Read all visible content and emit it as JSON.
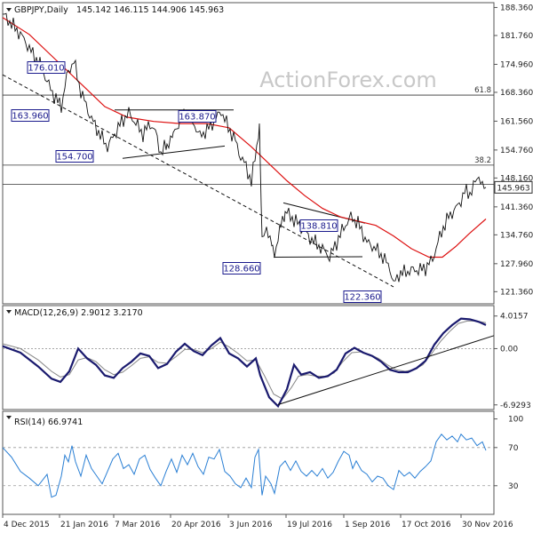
{
  "chart_data": [
    {
      "type": "candlestick",
      "title": "GBPJPY, Daily",
      "ohlc_readout": [
        "145.142",
        "146.115",
        "144.906",
        "145.963"
      ],
      "last_price": 145.963,
      "last_price_label": "145.963",
      "ylim": [
        118.5,
        189.5
      ],
      "y_ticks": [
        121.36,
        127.96,
        134.76,
        141.36,
        148.16,
        154.76,
        161.56,
        168.36,
        174.96,
        181.76,
        188.36
      ],
      "y_tick_labels": [
        "121.360",
        "127.960",
        "134.760",
        "141.360",
        "148.160",
        "154.760",
        "161.560",
        "168.360",
        "174.960",
        "181.760",
        "188.360"
      ],
      "x_tick_labels": [
        "4 Dec 2015",
        "21 Jan 2016",
        "7 Mar 2016",
        "20 Apr 2016",
        "3 Jun 2016",
        "19 Jul 2016",
        "1 Sep 2016",
        "17 Oct 2016",
        "30 Nov 2016"
      ],
      "price_path": [
        [
          0,
          186.8
        ],
        [
          10,
          184.5
        ],
        [
          22,
          181.5
        ],
        [
          32,
          178.0
        ],
        [
          42,
          175.0
        ],
        [
          52,
          170.0
        ],
        [
          58,
          167.5
        ],
        [
          66,
          165.0
        ],
        [
          72,
          172.0
        ],
        [
          80,
          176.0
        ],
        [
          86,
          170.0
        ],
        [
          96,
          164.0
        ],
        [
          104,
          160.5
        ],
        [
          112,
          157.5
        ],
        [
          118,
          155.5
        ],
        [
          126,
          158.5
        ],
        [
          134,
          161.5
        ],
        [
          142,
          163.5
        ],
        [
          150,
          161.0
        ],
        [
          158,
          158.5
        ],
        [
          166,
          161.0
        ],
        [
          172,
          159.0
        ],
        [
          178,
          154.0
        ],
        [
          185,
          156.0
        ],
        [
          192,
          158.5
        ],
        [
          198,
          161.0
        ],
        [
          206,
          163.8
        ],
        [
          214,
          161.5
        ],
        [
          222,
          158.0
        ],
        [
          230,
          159.5
        ],
        [
          238,
          161.5
        ],
        [
          246,
          164.0
        ],
        [
          254,
          160.0
        ],
        [
          262,
          157.0
        ],
        [
          268,
          153.0
        ],
        [
          274,
          151.0
        ],
        [
          280,
          147.0
        ],
        [
          284,
          153.0
        ],
        [
          289,
          160.0
        ],
        [
          292,
          133.5
        ],
        [
          297,
          136.5
        ],
        [
          304,
          131.0
        ],
        [
          308,
          131.5
        ],
        [
          313,
          137.0
        ],
        [
          318,
          140.5
        ],
        [
          324,
          139.0
        ],
        [
          330,
          138.0
        ],
        [
          338,
          136.0
        ],
        [
          346,
          134.0
        ],
        [
          354,
          132.5
        ],
        [
          362,
          131.0
        ],
        [
          368,
          129.5
        ],
        [
          376,
          133.0
        ],
        [
          384,
          136.5
        ],
        [
          392,
          139.0
        ],
        [
          400,
          137.5
        ],
        [
          410,
          133.0
        ],
        [
          420,
          131.5
        ],
        [
          428,
          129.5
        ],
        [
          436,
          127.0
        ],
        [
          440,
          123.0
        ],
        [
          446,
          125.5
        ],
        [
          454,
          126.0
        ],
        [
          462,
          126.5
        ],
        [
          470,
          126.5
        ],
        [
          476,
          127.0
        ],
        [
          484,
          129.0
        ],
        [
          490,
          133.0
        ],
        [
          496,
          136.5
        ],
        [
          502,
          139.0
        ],
        [
          508,
          140.5
        ],
        [
          514,
          142.0
        ],
        [
          520,
          145.0
        ],
        [
          526,
          144.5
        ],
        [
          532,
          147.0
        ],
        [
          536,
          149.0
        ],
        [
          540,
          146.0
        ],
        [
          544,
          145.963
        ]
      ],
      "ma_path": [
        [
          0,
          186.0
        ],
        [
          30,
          182.0
        ],
        [
          60,
          176.0
        ],
        [
          90,
          170.0
        ],
        [
          115,
          165.0
        ],
        [
          140,
          162.5
        ],
        [
          170,
          161.5
        ],
        [
          200,
          161.0
        ],
        [
          230,
          161.0
        ],
        [
          255,
          160.0
        ],
        [
          280,
          155.5
        ],
        [
          300,
          151.5
        ],
        [
          320,
          147.5
        ],
        [
          340,
          144.0
        ],
        [
          360,
          141.0
        ],
        [
          380,
          139.0
        ],
        [
          400,
          138.0
        ],
        [
          420,
          137.0
        ],
        [
          440,
          134.5
        ],
        [
          460,
          131.5
        ],
        [
          480,
          129.5
        ],
        [
          495,
          129.5
        ],
        [
          510,
          132.0
        ],
        [
          525,
          135.0
        ],
        [
          544,
          138.5
        ]
      ],
      "horizontal_levels": [
        {
          "label": "61.8",
          "value": 167.7
        },
        {
          "label": "38.2",
          "value": 151.2
        },
        {
          "label": "",
          "value": 146.7
        }
      ],
      "annotations": [
        {
          "label": "176.010",
          "value": 176.01
        },
        {
          "label": "163.960",
          "value": 163.96
        },
        {
          "label": "163.870",
          "value": 163.87
        },
        {
          "label": "154.700",
          "value": 154.7
        },
        {
          "label": "138.810",
          "value": 138.81
        },
        {
          "label": "128.660",
          "value": 128.66
        },
        {
          "label": "122.360",
          "value": 122.36
        }
      ],
      "trendlines": [
        {
          "from": [
            0,
            172.5
          ],
          "to": [
            440,
            122.5
          ],
          "style": "dashed"
        },
        {
          "from": [
            126,
            164.2
          ],
          "to": [
            260,
            164.2
          ],
          "style": "solid"
        },
        {
          "from": [
            135,
            152.8
          ],
          "to": [
            250,
            155.7
          ],
          "style": "solid"
        },
        {
          "from": [
            316,
            142.3
          ],
          "to": [
            408,
            137.5
          ],
          "style": "solid"
        },
        {
          "from": [
            305,
            129.5
          ],
          "to": [
            405,
            129.6
          ],
          "style": "solid"
        }
      ],
      "watermark": "ActionForex.com"
    },
    {
      "type": "line",
      "title": "MACD(12,26,9) 2.9012 3.2170",
      "ylim": [
        -7.5,
        5.3
      ],
      "y_ticks": [
        4.0157,
        0.0,
        -6.9293
      ],
      "y_tick_labels": [
        "4.0157",
        "0.00",
        "-6.9293"
      ],
      "macd_path": [
        [
          0,
          0.3
        ],
        [
          20,
          -0.5
        ],
        [
          40,
          -2.2
        ],
        [
          55,
          -3.7
        ],
        [
          65,
          -4.1
        ],
        [
          75,
          -2.8
        ],
        [
          85,
          0.0
        ],
        [
          95,
          -1.2
        ],
        [
          105,
          -2.0
        ],
        [
          115,
          -3.3
        ],
        [
          125,
          -3.6
        ],
        [
          135,
          -2.4
        ],
        [
          145,
          -1.6
        ],
        [
          155,
          -0.6
        ],
        [
          165,
          -0.9
        ],
        [
          175,
          -2.4
        ],
        [
          185,
          -1.9
        ],
        [
          195,
          -0.4
        ],
        [
          205,
          0.6
        ],
        [
          215,
          -0.3
        ],
        [
          225,
          -0.8
        ],
        [
          235,
          0.4
        ],
        [
          245,
          1.3
        ],
        [
          255,
          -0.6
        ],
        [
          265,
          -1.2
        ],
        [
          275,
          -2.2
        ],
        [
          285,
          -1.2
        ],
        [
          290,
          -3.3
        ],
        [
          300,
          -6.0
        ],
        [
          310,
          -7.1
        ],
        [
          320,
          -5.0
        ],
        [
          328,
          -2.0
        ],
        [
          336,
          -3.2
        ],
        [
          346,
          -2.9
        ],
        [
          356,
          -3.6
        ],
        [
          366,
          -3.4
        ],
        [
          376,
          -2.6
        ],
        [
          386,
          -0.6
        ],
        [
          396,
          0.1
        ],
        [
          406,
          -0.5
        ],
        [
          416,
          -0.9
        ],
        [
          426,
          -1.6
        ],
        [
          436,
          -2.6
        ],
        [
          446,
          -2.9
        ],
        [
          456,
          -2.9
        ],
        [
          466,
          -2.4
        ],
        [
          476,
          -1.5
        ],
        [
          486,
          0.5
        ],
        [
          496,
          1.9
        ],
        [
          506,
          2.9
        ],
        [
          516,
          3.7
        ],
        [
          526,
          3.6
        ],
        [
          536,
          3.3
        ],
        [
          544,
          2.9
        ]
      ],
      "signal_path": [
        [
          0,
          0.6
        ],
        [
          20,
          0.0
        ],
        [
          40,
          -1.4
        ],
        [
          55,
          -2.8
        ],
        [
          65,
          -3.5
        ],
        [
          75,
          -3.2
        ],
        [
          85,
          -1.4
        ],
        [
          95,
          -1.1
        ],
        [
          105,
          -1.6
        ],
        [
          115,
          -2.6
        ],
        [
          125,
          -3.2
        ],
        [
          135,
          -2.9
        ],
        [
          145,
          -2.1
        ],
        [
          155,
          -1.2
        ],
        [
          165,
          -1.0
        ],
        [
          175,
          -1.7
        ],
        [
          185,
          -1.8
        ],
        [
          195,
          -1.0
        ],
        [
          205,
          -0.1
        ],
        [
          215,
          -0.1
        ],
        [
          225,
          -0.5
        ],
        [
          235,
          0.0
        ],
        [
          245,
          0.8
        ],
        [
          255,
          0.2
        ],
        [
          265,
          -0.6
        ],
        [
          275,
          -1.5
        ],
        [
          285,
          -1.4
        ],
        [
          295,
          -3.4
        ],
        [
          305,
          -5.6
        ],
        [
          315,
          -6.2
        ],
        [
          325,
          -4.8
        ],
        [
          333,
          -3.4
        ],
        [
          343,
          -3.2
        ],
        [
          353,
          -3.4
        ],
        [
          363,
          -3.4
        ],
        [
          373,
          -3.0
        ],
        [
          383,
          -1.6
        ],
        [
          393,
          -0.5
        ],
        [
          403,
          -0.4
        ],
        [
          413,
          -0.7
        ],
        [
          423,
          -1.2
        ],
        [
          433,
          -2.0
        ],
        [
          443,
          -2.6
        ],
        [
          453,
          -2.8
        ],
        [
          463,
          -2.6
        ],
        [
          473,
          -2.0
        ],
        [
          483,
          -0.6
        ],
        [
          493,
          0.9
        ],
        [
          503,
          2.1
        ],
        [
          513,
          3.1
        ],
        [
          523,
          3.4
        ],
        [
          533,
          3.4
        ],
        [
          544,
          3.2
        ]
      ],
      "trendline": {
        "from": [
          310,
          -6.9
        ],
        "to": [
          556,
          1.6
        ]
      }
    },
    {
      "type": "line",
      "title": "RSI(14) 66.9741",
      "ylim": [
        0,
        108
      ],
      "y_ticks": [
        100,
        70,
        30
      ],
      "y_tick_labels": [
        "100",
        "70",
        "30"
      ],
      "dashed_levels": [
        70,
        30
      ],
      "rsi_path": [
        [
          0,
          70
        ],
        [
          10,
          60
        ],
        [
          20,
          45
        ],
        [
          30,
          38
        ],
        [
          40,
          30
        ],
        [
          50,
          42
        ],
        [
          55,
          18
        ],
        [
          60,
          20
        ],
        [
          66,
          40
        ],
        [
          70,
          62
        ],
        [
          74,
          55
        ],
        [
          78,
          72
        ],
        [
          82,
          55
        ],
        [
          88,
          40
        ],
        [
          94,
          62
        ],
        [
          100,
          48
        ],
        [
          106,
          40
        ],
        [
          112,
          32
        ],
        [
          118,
          45
        ],
        [
          124,
          58
        ],
        [
          130,
          64
        ],
        [
          136,
          48
        ],
        [
          142,
          52
        ],
        [
          148,
          42
        ],
        [
          154,
          58
        ],
        [
          160,
          62
        ],
        [
          166,
          47
        ],
        [
          172,
          38
        ],
        [
          178,
          30
        ],
        [
          184,
          45
        ],
        [
          190,
          58
        ],
        [
          196,
          44
        ],
        [
          202,
          62
        ],
        [
          208,
          52
        ],
        [
          214,
          64
        ],
        [
          220,
          50
        ],
        [
          226,
          42
        ],
        [
          232,
          60
        ],
        [
          238,
          58
        ],
        [
          244,
          68
        ],
        [
          250,
          45
        ],
        [
          256,
          40
        ],
        [
          262,
          32
        ],
        [
          268,
          28
        ],
        [
          274,
          38
        ],
        [
          280,
          28
        ],
        [
          284,
          60
        ],
        [
          288,
          68
        ],
        [
          292,
          20
        ],
        [
          296,
          40
        ],
        [
          302,
          32
        ],
        [
          306,
          22
        ],
        [
          312,
          50
        ],
        [
          318,
          56
        ],
        [
          324,
          46
        ],
        [
          330,
          56
        ],
        [
          336,
          45
        ],
        [
          342,
          40
        ],
        [
          348,
          46
        ],
        [
          354,
          40
        ],
        [
          360,
          48
        ],
        [
          366,
          38
        ],
        [
          372,
          44
        ],
        [
          378,
          56
        ],
        [
          384,
          66
        ],
        [
          390,
          62
        ],
        [
          394,
          48
        ],
        [
          398,
          56
        ],
        [
          404,
          46
        ],
        [
          410,
          42
        ],
        [
          416,
          34
        ],
        [
          422,
          40
        ],
        [
          428,
          38
        ],
        [
          434,
          30
        ],
        [
          440,
          26
        ],
        [
          446,
          46
        ],
        [
          452,
          40
        ],
        [
          458,
          44
        ],
        [
          464,
          38
        ],
        [
          470,
          45
        ],
        [
          476,
          50
        ],
        [
          482,
          56
        ],
        [
          488,
          76
        ],
        [
          494,
          84
        ],
        [
          500,
          78
        ],
        [
          506,
          82
        ],
        [
          512,
          76
        ],
        [
          516,
          84
        ],
        [
          522,
          78
        ],
        [
          528,
          80
        ],
        [
          534,
          72
        ],
        [
          540,
          76
        ],
        [
          544,
          66.97
        ]
      ]
    }
  ]
}
